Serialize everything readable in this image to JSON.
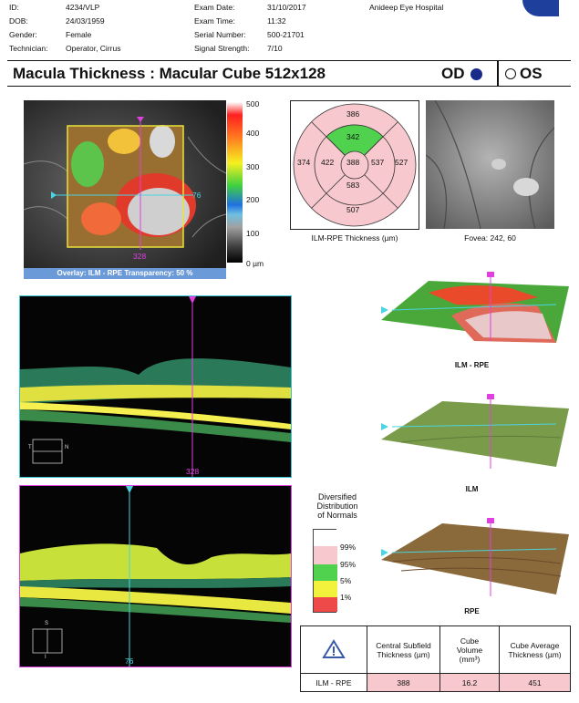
{
  "patient": {
    "id_label": "ID:",
    "id": "4234/VLP",
    "dob_label": "DOB:",
    "dob": "24/03/1959",
    "gender_label": "Gender:",
    "gender": "Female",
    "tech_label": "Technician:",
    "tech": "Operator, Cirrus"
  },
  "exam": {
    "date_label": "Exam Date:",
    "date": "31/10/2017",
    "time_label": "Exam Time:",
    "time": "11:32",
    "serial_label": "Serial Number:",
    "serial": "500-21701",
    "signal_label": "Signal Strength:",
    "signal": "7/10"
  },
  "hospital": "Anideep Eye Hospital",
  "title": "Macula Thickness : Macular Cube 512x128",
  "eye": {
    "od": "OD",
    "os": "OS"
  },
  "colorbar": {
    "ticks": [
      "500",
      "400",
      "300",
      "200",
      "100",
      "0 µm"
    ]
  },
  "fundus": {
    "overlay_caption": "Overlay: ILM - RPE  Transparency: 50 %",
    "h_marker": "76",
    "v_marker": "328"
  },
  "etdrs": {
    "outer_top": "386",
    "inner_top": "342",
    "outer_left": "374",
    "inner_left": "422",
    "center": "388",
    "inner_right": "537",
    "outer_right": "527",
    "inner_bottom": "583",
    "outer_bottom": "507",
    "caption": "ILM-RPE Thickness (µm)"
  },
  "slo": {
    "caption": "Fovea: 242, 60"
  },
  "bscan1": {
    "marker": "328",
    "label_t": "T",
    "label_n": "N"
  },
  "bscan2": {
    "marker": "76",
    "label_s": "S",
    "label_i": "I"
  },
  "surfaces": {
    "ilm_rpe": "ILM - RPE",
    "ilm": "ILM",
    "rpe": "RPE"
  },
  "legend": {
    "title_line1": "Diversified",
    "title_line2": "Distribution",
    "title_line3": "of Normals",
    "p99": "99%",
    "p95": "95%",
    "p5": "5%",
    "p1": "1%",
    "colors": {
      "white": "#ffffff",
      "red": "#ef4a4a",
      "yellow": "#f2f13c",
      "green": "#51d24f",
      "pink": "#f7c9ce"
    }
  },
  "results": {
    "col1": "Central Subfield Thickness (µm)",
    "col2_line1": "Cube",
    "col2_line2": "Volume",
    "col2_line3": "(mm³)",
    "col3": "Cube Average Thickness (µm)",
    "row_label": "ILM - RPE",
    "cst": "388",
    "volume": "16.2",
    "avg": "451"
  }
}
